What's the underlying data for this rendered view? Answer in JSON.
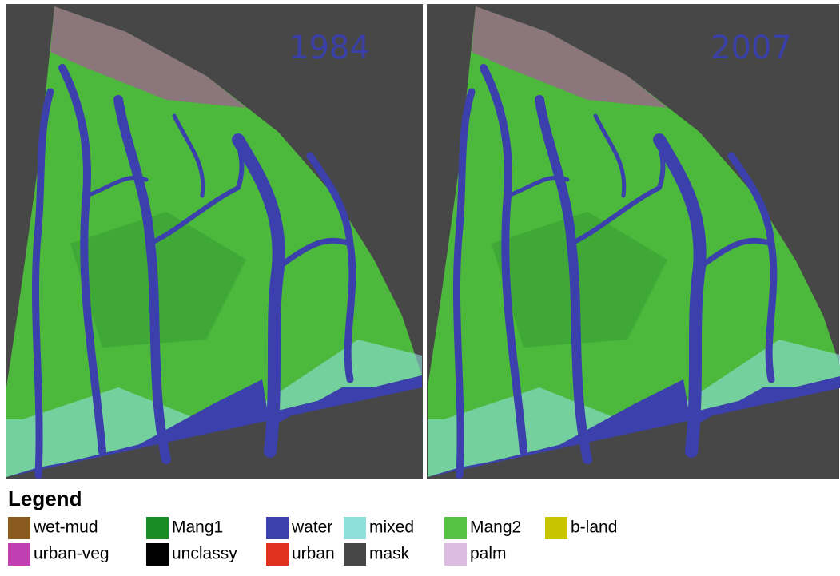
{
  "panels": [
    {
      "year": "1984"
    },
    {
      "year": "2007"
    }
  ],
  "legend": {
    "title": "Legend",
    "items": [
      {
        "label": "wet-mud",
        "color": "#8b5a1e"
      },
      {
        "label": "Mang1",
        "color": "#1a8c24"
      },
      {
        "label": "water",
        "color": "#3b40ad"
      },
      {
        "label": "mixed",
        "color": "#8fe0dc"
      },
      {
        "label": "Mang2",
        "color": "#55c244"
      },
      {
        "label": "b-land",
        "color": "#c8c400"
      },
      {
        "label": "urban-veg",
        "color": "#c23fb2"
      },
      {
        "label": "unclassy",
        "color": "#000000"
      },
      {
        "label": "urban",
        "color": "#e0301e"
      },
      {
        "label": "mask",
        "color": "#474747"
      },
      {
        "label": "palm",
        "color": "#dcbce0"
      }
    ]
  }
}
